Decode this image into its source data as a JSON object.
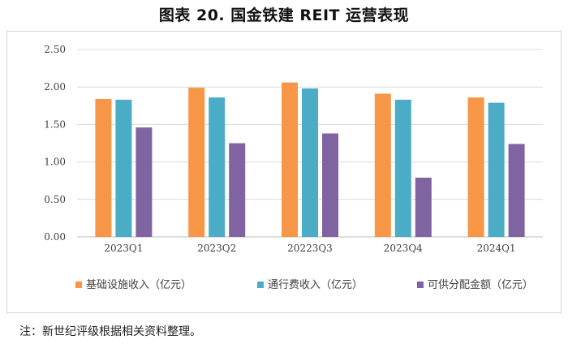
{
  "title": "图表 20.   国金铁建 REIT 运营表现",
  "note": "注：新世纪评级根据相关资料整理。",
  "chart_data": {
    "type": "bar",
    "title": "",
    "xlabel": "",
    "ylabel": "",
    "ylim": [
      0,
      2.5
    ],
    "yticks": [
      "0.00",
      "0.50",
      "1.00",
      "1.50",
      "2.00",
      "2.50"
    ],
    "grid": true,
    "legend_position": "bottom",
    "categories": [
      "2023Q1",
      "2023Q2",
      "20223Q3",
      "2023Q4",
      "2024Q1"
    ],
    "series": [
      {
        "name": "基础设施收入（亿元）",
        "color": "#F79646",
        "values": [
          1.84,
          1.99,
          2.06,
          1.91,
          1.86
        ]
      },
      {
        "name": "通行费收入（亿元）",
        "color": "#4BACC6",
        "values": [
          1.83,
          1.86,
          1.98,
          1.83,
          1.79
        ]
      },
      {
        "name": "可供分配金额（亿元）",
        "color": "#8064A2",
        "values": [
          1.46,
          1.25,
          1.38,
          0.79,
          1.24
        ]
      }
    ]
  }
}
